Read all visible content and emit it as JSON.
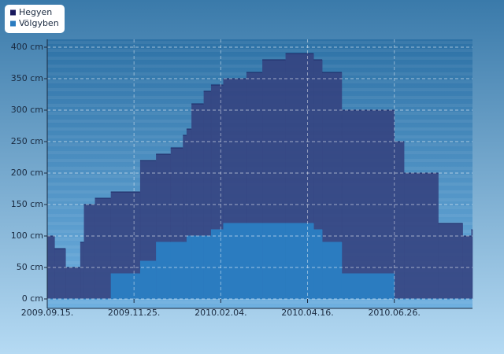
{
  "chart_data": {
    "type": "step-area",
    "x": [
      "2009-09-15",
      "2009-09-21",
      "2009-09-30",
      "2009-10-12",
      "2009-10-15",
      "2009-10-24",
      "2009-11-06",
      "2009-11-30",
      "2009-12-13",
      "2009-12-25",
      "2010-01-04",
      "2010-01-07",
      "2010-01-11",
      "2010-01-21",
      "2010-01-27",
      "2010-02-06",
      "2010-02-25",
      "2010-03-10",
      "2010-03-29",
      "2010-04-21",
      "2010-04-28",
      "2010-05-14",
      "2010-06-26",
      "2010-07-04",
      "2010-08-01",
      "2010-08-21",
      "2010-08-28"
    ],
    "series": [
      {
        "name": "Hegyen",
        "color": "#34427f",
        "values": [
          100,
          80,
          50,
          90,
          150,
          160,
          170,
          220,
          230,
          240,
          260,
          270,
          310,
          330,
          340,
          350,
          360,
          380,
          390,
          380,
          360,
          300,
          250,
          200,
          120,
          100,
          110
        ]
      },
      {
        "name": "Völgyben",
        "color": "#2b7cc0",
        "values": [
          0,
          0,
          0,
          0,
          0,
          0,
          40,
          60,
          90,
          90,
          90,
          100,
          100,
          100,
          110,
          120,
          120,
          120,
          120,
          110,
          90,
          40,
          0,
          0,
          0,
          0,
          0
        ]
      }
    ],
    "xlim": [
      "2009-09-15",
      "2010-08-29"
    ],
    "xticks": [
      {
        "value": "2009-09-15",
        "label": "2009.09.15."
      },
      {
        "value": "2009-11-25",
        "label": "2009.11.25."
      },
      {
        "value": "2010-02-04",
        "label": "2010.02.04."
      },
      {
        "value": "2010-04-16",
        "label": "2010.04.16."
      },
      {
        "value": "2010-06-26",
        "label": "2010.06.26."
      }
    ],
    "ylim": [
      0,
      400
    ],
    "yticks": [
      {
        "value": 0,
        "label": "0 cm"
      },
      {
        "value": 50,
        "label": "50 cm"
      },
      {
        "value": 100,
        "label": "100 cm"
      },
      {
        "value": 150,
        "label": "150 cm"
      },
      {
        "value": 200,
        "label": "200 cm"
      },
      {
        "value": 250,
        "label": "250 cm"
      },
      {
        "value": 300,
        "label": "300 cm"
      },
      {
        "value": 350,
        "label": "350 cm"
      },
      {
        "value": 400,
        "label": "400 cm"
      }
    ],
    "grid": true,
    "legend": "top-left"
  }
}
